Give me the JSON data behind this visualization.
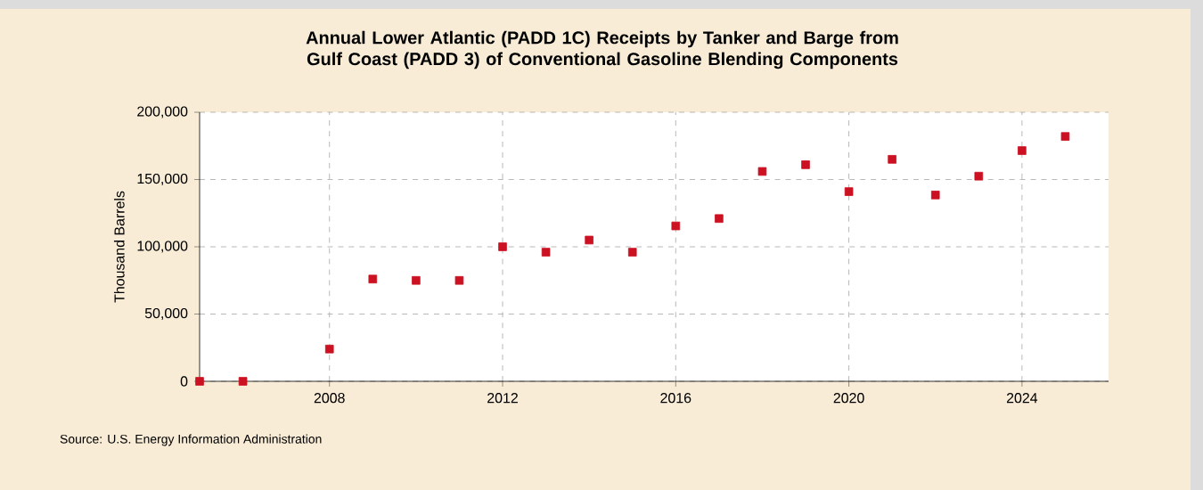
{
  "chart_data": {
    "type": "scatter",
    "title": "Annual Lower Atlantic (PADD 1C) Receipts by Tanker and Barge from Gulf Coast (PADD 3) of Conventional Gasoline Blending Components",
    "ylabel": "Thousand Barrels",
    "annotations": [
      "Source: U.S. Energy Information Administration"
    ],
    "x": [
      2005,
      2006,
      2008,
      2009,
      2010,
      2011,
      2012,
      2013,
      2014,
      2015,
      2016,
      2017,
      2018,
      2019,
      2020,
      2021,
      2022,
      2023,
      2024,
      2025
    ],
    "series": [
      {
        "color": "#cc1122",
        "values": [
          0,
          0,
          24000,
          76000,
          75000,
          75000,
          100000,
          96000,
          105000,
          96000,
          115500,
          121000,
          156000,
          161000,
          141000,
          165000,
          138500,
          152500,
          171500,
          182000
        ]
      }
    ],
    "xlim": [
      2005,
      2026
    ],
    "xticks": [
      2008,
      2012,
      2016,
      2020,
      2024
    ],
    "ylim": [
      0,
      200000
    ],
    "yticks": [
      {
        "value": 0,
        "label": "0"
      },
      {
        "value": 50000,
        "label": "50,000"
      },
      {
        "value": 100000,
        "label": "100,000"
      },
      {
        "value": 150000,
        "label": "150,000"
      },
      {
        "value": 200000,
        "label": "200,000"
      }
    ],
    "grid": true,
    "marker": "square"
  }
}
